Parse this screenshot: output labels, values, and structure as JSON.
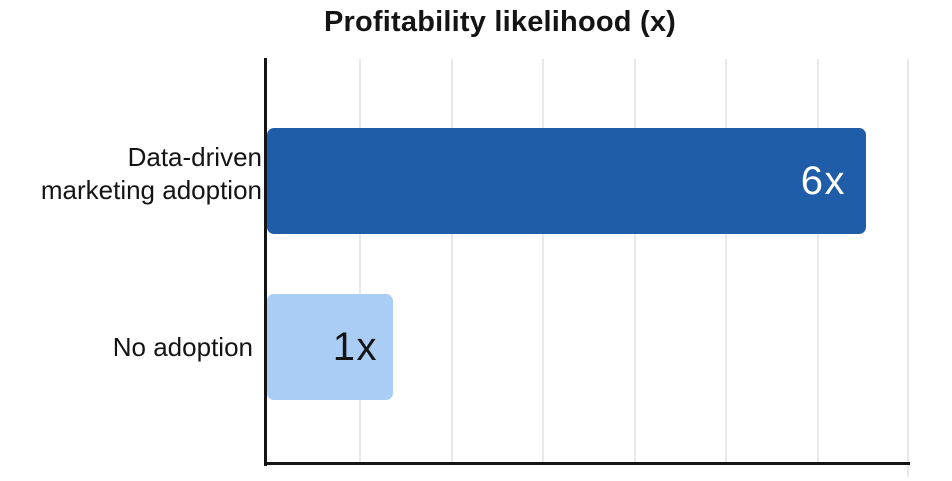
{
  "chart_data": {
    "type": "bar",
    "orientation": "horizontal",
    "title": "Profitability likelihood (x)",
    "categories": [
      "Data-driven marketing adoption",
      "No adoption"
    ],
    "categories_display": [
      [
        "Data-driven",
        "marketing adoption"
      ],
      [
        "No adoption"
      ]
    ],
    "values": [
      6,
      1
    ],
    "value_labels": [
      "6x",
      "1x"
    ],
    "xlabel": "",
    "ylabel": "",
    "xlim": [
      0,
      7
    ],
    "gridline_count": 7,
    "legend": "none",
    "tick_labels": "none",
    "grid": "vertical gridlines on",
    "bar_colors": [
      "#1f5da9",
      "#a9cdf4"
    ],
    "value_label_colors": [
      "#ffffff",
      "#141414"
    ],
    "gridline_color": "#e9e9e9",
    "axis_color": "#141414",
    "text_color": "#141414",
    "background_color": "#ffffff"
  }
}
